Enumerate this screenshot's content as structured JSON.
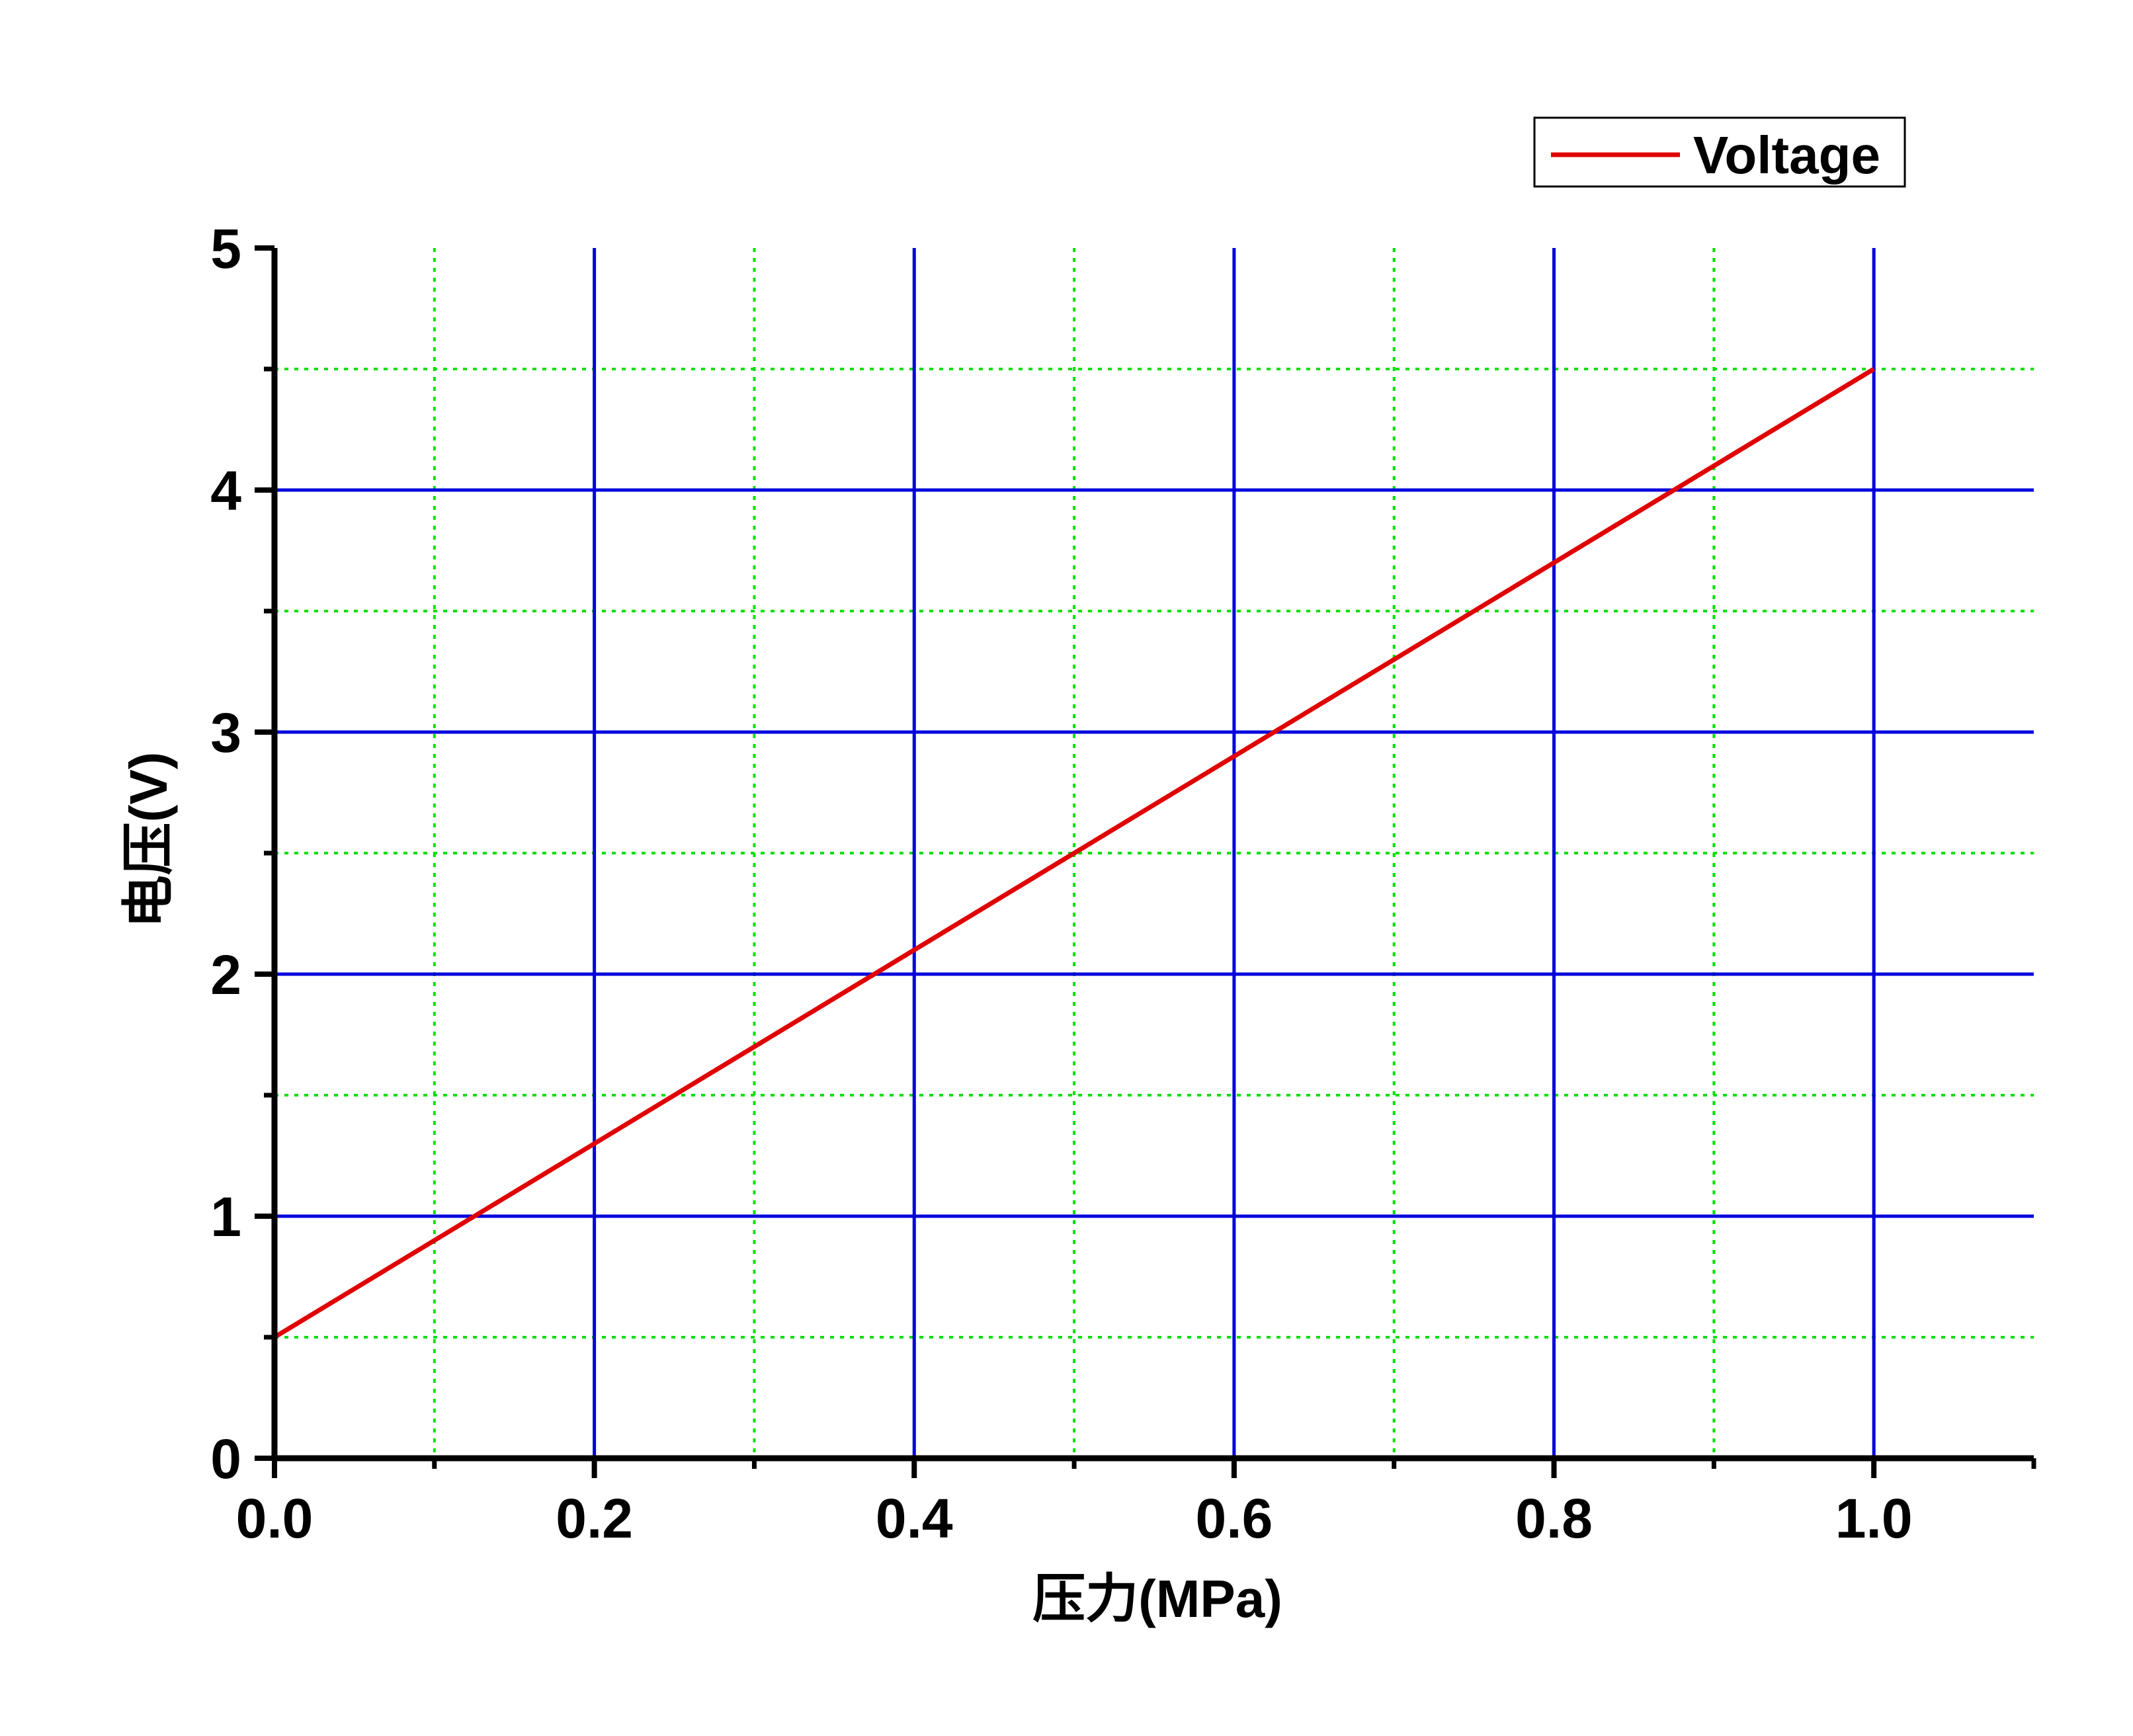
{
  "chart_data": {
    "type": "line",
    "title": "",
    "xlabel": "压力(MPa)",
    "ylabel": "电压(V)",
    "xlim": [
      0,
      1.1
    ],
    "ylim": [
      0,
      5
    ],
    "x_ticks": [
      "0.0",
      "0.2",
      "0.4",
      "0.6",
      "0.8",
      "1.0"
    ],
    "y_ticks": [
      "0",
      "1",
      "2",
      "3",
      "4",
      "5"
    ],
    "grid": {
      "major": true,
      "minor": true,
      "major_color": "#0000dd",
      "minor_color": "#00e000",
      "minor_style": "dotted"
    },
    "legend_position": "top-right",
    "series": [
      {
        "name": "Voltage",
        "color": "#e00000",
        "x": [
          0.0,
          1.0
        ],
        "y": [
          0.5,
          4.5
        ]
      }
    ]
  }
}
